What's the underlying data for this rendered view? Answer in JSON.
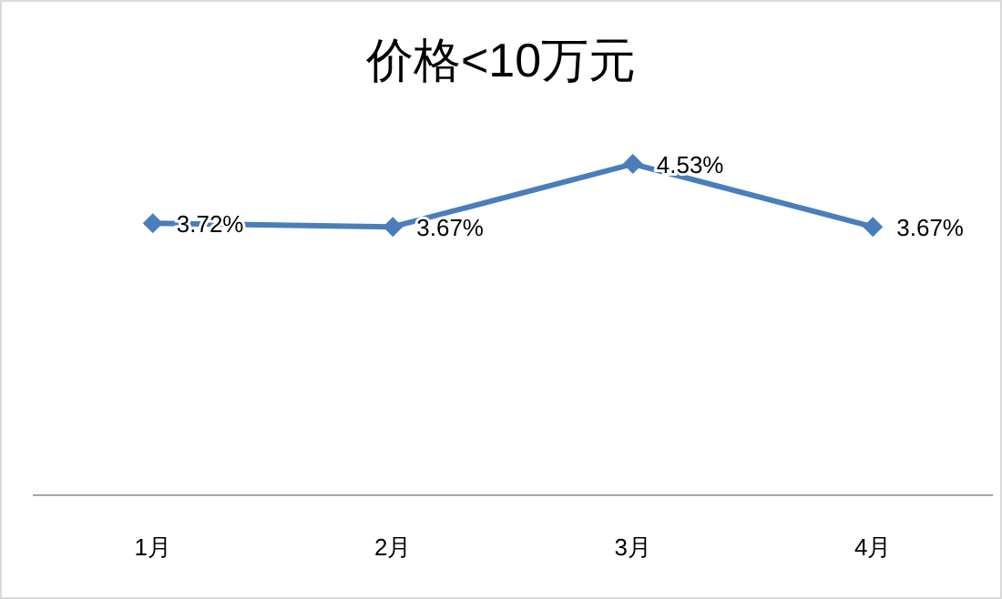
{
  "chart_data": {
    "type": "line",
    "title": "价格<10万元",
    "categories": [
      "1月",
      "2月",
      "3月",
      "4月"
    ],
    "series": [
      {
        "color": "#4a7ebb",
        "values": [
          3.72,
          3.67,
          4.53,
          3.67
        ],
        "value_labels": [
          "3.72%",
          "3.67%",
          "4.53%",
          "3.67%"
        ]
      }
    ],
    "marker": "diamond",
    "line_style": "solid"
  }
}
